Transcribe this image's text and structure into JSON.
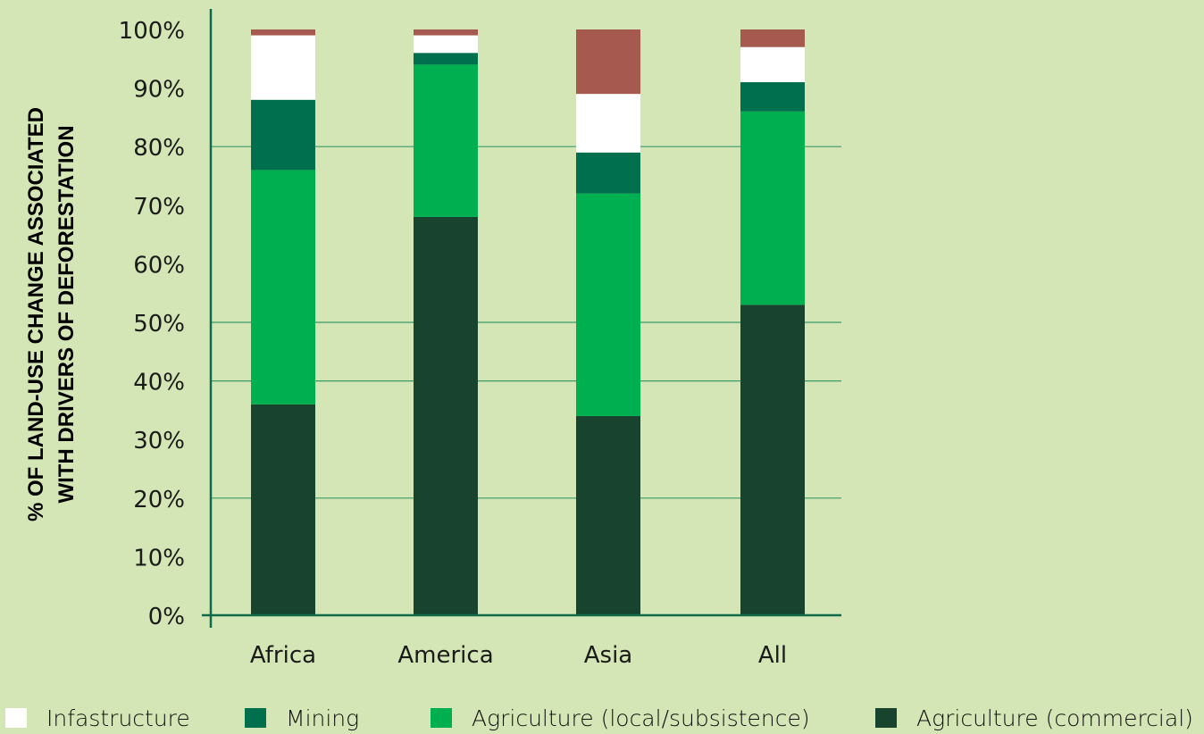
{
  "chart_data": {
    "type": "bar",
    "stacked": true,
    "title": "",
    "xlabel": "",
    "ylabel": "% OF LAND-USE CHANGE ASSOCIATED WITH DRIVERS OF DEFORESTATION",
    "ylabel_lines": [
      "% OF LAND-USE CHANGE ASSOCIATED",
      "WITH DRIVERS OF DEFORESTATION"
    ],
    "ylim": [
      0,
      100
    ],
    "yticks": [
      0,
      10,
      20,
      30,
      40,
      50,
      60,
      70,
      80,
      90,
      100
    ],
    "ytick_labels": [
      "0%",
      "10%",
      "20%",
      "30%",
      "40%",
      "50%",
      "60%",
      "70%",
      "80%",
      "90%",
      "100%"
    ],
    "gridlines_at": [
      20,
      40,
      50,
      80
    ],
    "categories": [
      "Africa",
      "America",
      "Asia",
      "All"
    ],
    "series": [
      {
        "name": "Agriculture (commercial)",
        "color": "#17432f",
        "values": [
          36,
          68,
          34,
          53
        ]
      },
      {
        "name": "Agriculture (local/subsistence)",
        "color": "#00b050",
        "values": [
          40,
          26,
          38,
          33
        ]
      },
      {
        "name": "Mining",
        "color": "#006f4e",
        "values": [
          12,
          2,
          7,
          5
        ]
      },
      {
        "name": "Infastructure",
        "color": "#ffffff",
        "values": [
          11,
          3,
          10,
          6
        ]
      },
      {
        "name": "",
        "color": "#a65a4f",
        "values": [
          1,
          1,
          11,
          3
        ]
      }
    ],
    "legend": {
      "placement": "bottom",
      "entries": [
        "Infastructure",
        "Mining",
        "Agriculture (local/subsistence)",
        "Agriculture (commercial)"
      ]
    }
  },
  "colors": {
    "background": "#d4e6b5",
    "axis": "#0f6a4a",
    "grid": "#3b9a6a",
    "text": "#1a1a1a"
  }
}
